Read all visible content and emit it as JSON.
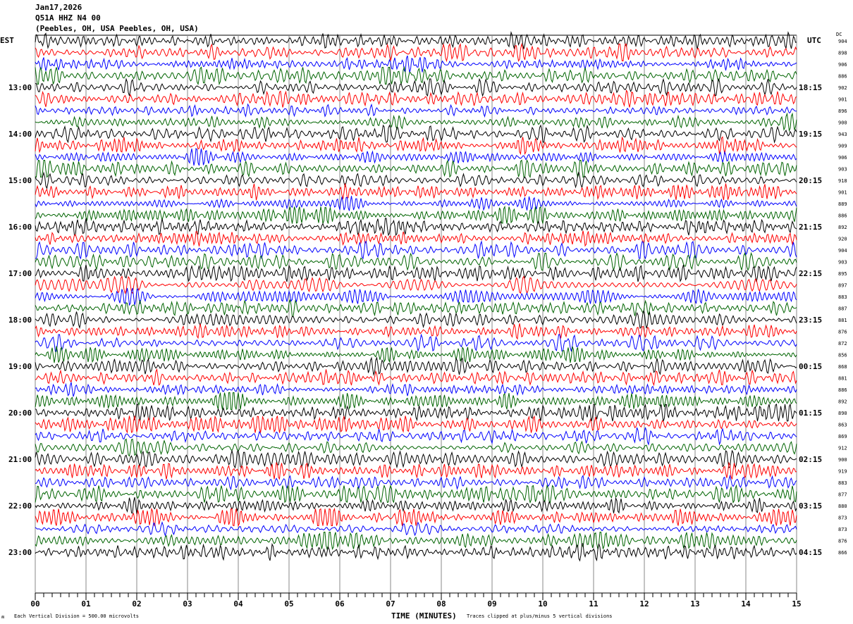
{
  "header": {
    "date": "Jan17,2026",
    "station": "Q51A HHZ N4 00",
    "location": "(Peebles, OH, USA Peebles, OH, USA)"
  },
  "left_axis_label": "EST",
  "right_axis_label": "UTC",
  "dc_label": "DC",
  "footer": {
    "scale": "Each Vertical Division =  500.00 microvolts",
    "xlabel": "TIME (MINUTES)",
    "clip": "Traces clipped at plus/minus 5 vertical divisions"
  },
  "chart_data": {
    "type": "line",
    "subtype": "helicorder",
    "xlabel": "TIME (MINUTES)",
    "xlim": [
      0,
      15
    ],
    "x_ticks": [
      "00",
      "01",
      "02",
      "03",
      "04",
      "05",
      "06",
      "07",
      "08",
      "09",
      "10",
      "11",
      "12",
      "13",
      "14",
      "15"
    ],
    "grid": "vertical lines each minute",
    "trace_colors": [
      "#000000",
      "#ff0000",
      "#0000ff",
      "#006400"
    ],
    "left_hour_labels": [
      "13:00",
      "14:00",
      "15:00",
      "16:00",
      "17:00",
      "18:00",
      "19:00",
      "20:00",
      "21:00",
      "22:00",
      "23:00"
    ],
    "right_hour_labels": [
      "18:15",
      "19:15",
      "20:15",
      "21:15",
      "22:15",
      "23:15",
      "00:15",
      "01:15",
      "02:15",
      "03:15",
      "04:15"
    ],
    "row_dc_values": [
      "904",
      "898",
      "906",
      "886",
      "902",
      "901",
      "896",
      "900",
      "943",
      "909",
      "906",
      "903",
      "918",
      "901",
      "889",
      "886",
      "892",
      "920",
      "904",
      "903",
      "895",
      "897",
      "883",
      "887",
      "881",
      "876",
      "872",
      "856",
      "868",
      "881",
      "886",
      "892",
      "890",
      "863",
      "869",
      "912",
      "900",
      "919",
      "883",
      "877",
      "880",
      "873",
      "873",
      "876",
      "866"
    ]
  }
}
